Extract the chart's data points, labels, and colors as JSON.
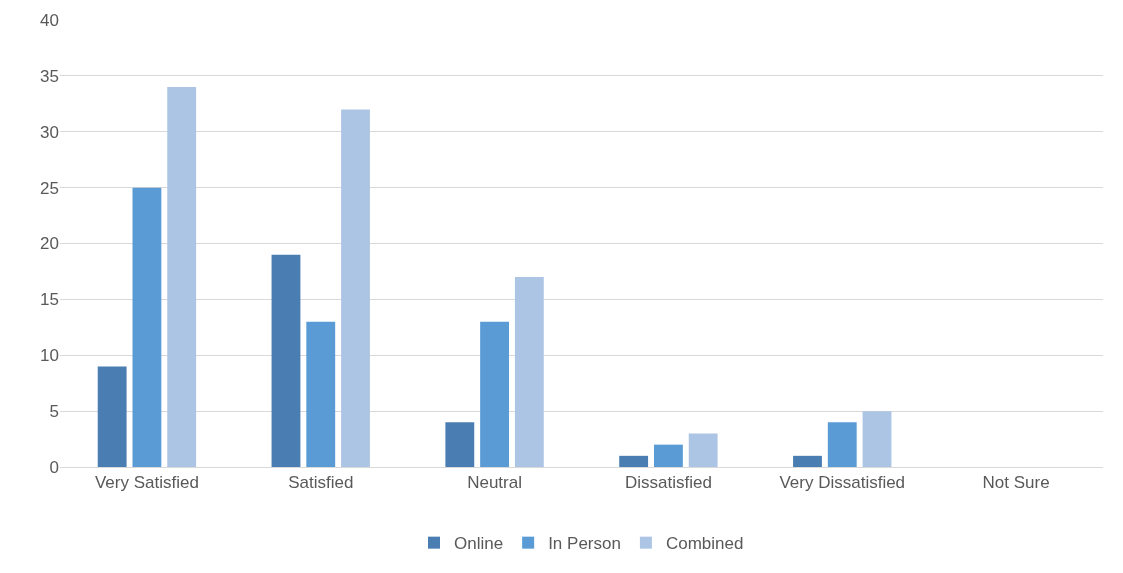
{
  "chart_data": {
    "type": "bar",
    "categories": [
      "Very Satisfied",
      "Satisfied",
      "Neutral",
      "Dissatisfied",
      "Very Dissatisfied",
      "Not Sure"
    ],
    "series": [
      {
        "name": "Online",
        "color": "#4a7eb2",
        "values": [
          9,
          19,
          4,
          1,
          1,
          0
        ]
      },
      {
        "name": "In Person",
        "color": "#5b9bd5",
        "values": [
          25,
          13,
          13,
          2,
          4,
          0
        ]
      },
      {
        "name": "Combined",
        "color": "#adc5e4",
        "values": [
          34,
          32,
          17,
          3,
          5,
          0
        ]
      }
    ],
    "ylim": [
      0,
      40
    ],
    "yticks": [
      0,
      5,
      10,
      15,
      20,
      25,
      30,
      35,
      40
    ],
    "grid": "y",
    "legend": "bottom"
  }
}
